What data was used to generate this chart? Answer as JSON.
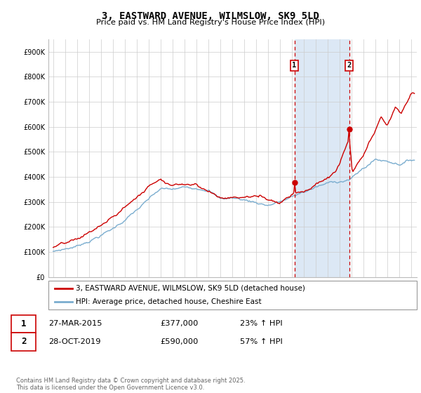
{
  "title": "3, EASTWARD AVENUE, WILMSLOW, SK9 5LD",
  "subtitle": "Price paid vs. HM Land Registry's House Price Index (HPI)",
  "ylim": [
    0,
    950000
  ],
  "yticks": [
    0,
    100000,
    200000,
    300000,
    400000,
    500000,
    600000,
    700000,
    800000,
    900000
  ],
  "ytick_labels": [
    "£0",
    "£100K",
    "£200K",
    "£300K",
    "£400K",
    "£500K",
    "£600K",
    "£700K",
    "£800K",
    "£900K"
  ],
  "xlim": [
    1994.6,
    2025.5
  ],
  "xticks": [
    1995,
    1996,
    1997,
    1998,
    1999,
    2000,
    2001,
    2002,
    2003,
    2004,
    2005,
    2006,
    2007,
    2008,
    2009,
    2010,
    2011,
    2012,
    2013,
    2014,
    2015,
    2016,
    2017,
    2018,
    2019,
    2020,
    2021,
    2022,
    2023,
    2024,
    2025
  ],
  "sale1_x": 2015.23,
  "sale1_y": 377000,
  "sale2_x": 2019.83,
  "sale2_y": 590000,
  "shade_color": "#dce8f5",
  "red_color": "#cc0000",
  "blue_color": "#7aadcf",
  "legend_label1": "3, EASTWARD AVENUE, WILMSLOW, SK9 5LD (detached house)",
  "legend_label2": "HPI: Average price, detached house, Cheshire East",
  "table_row1": [
    "1",
    "27-MAR-2015",
    "£377,000",
    "23% ↑ HPI"
  ],
  "table_row2": [
    "2",
    "28-OCT-2019",
    "£590,000",
    "57% ↑ HPI"
  ],
  "footnote": "Contains HM Land Registry data © Crown copyright and database right 2025.\nThis data is licensed under the Open Government Licence v3.0.",
  "bg_color": "#ffffff",
  "grid_color": "#cccccc"
}
